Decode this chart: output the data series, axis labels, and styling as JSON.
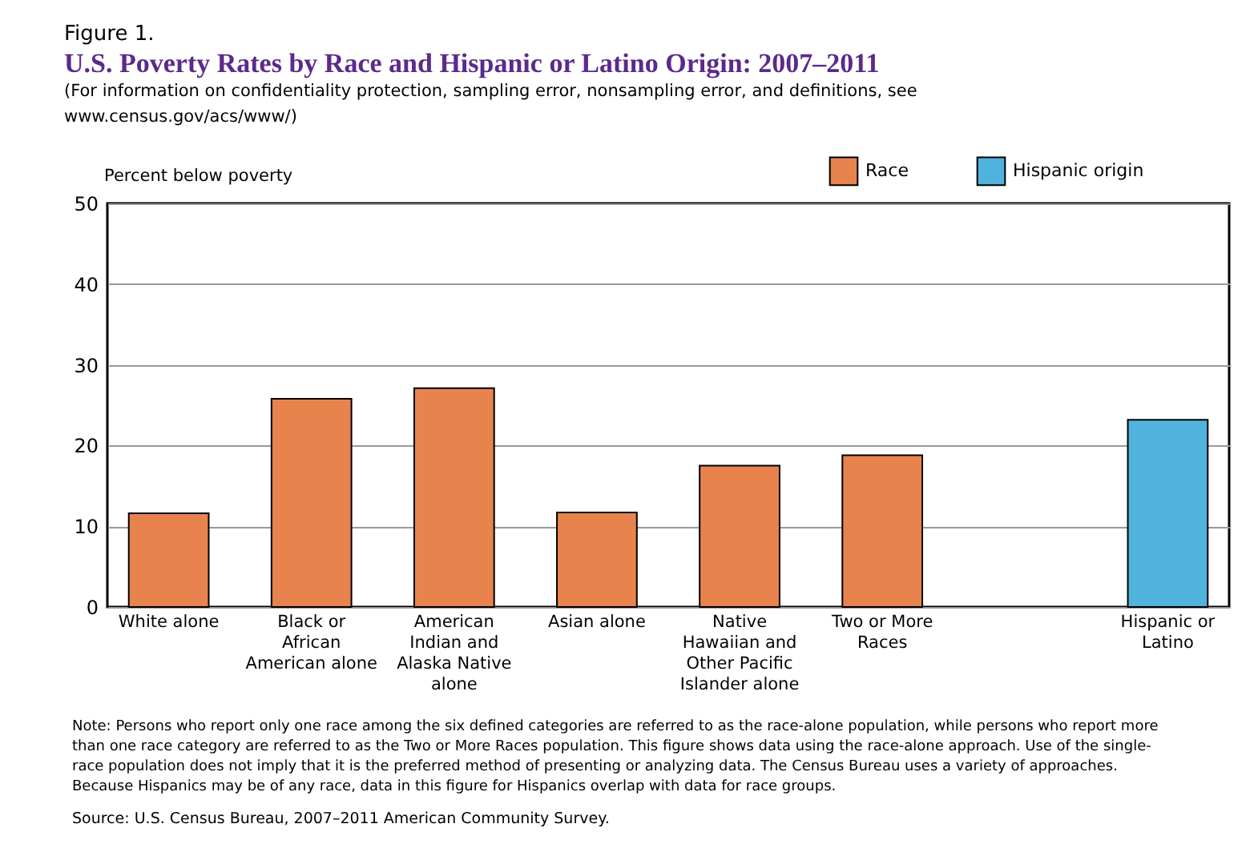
{
  "chart_data": {
    "type": "bar",
    "title": "U.S. Poverty Rates by Race and Hispanic or Latino Origin: 2007–2011",
    "subtitle": "(For information on confidentiality protection, sampling error, nonsampling error, and definitions, see www.census.gov/acs/www/)",
    "ylabel": "Percent below poverty",
    "categories": [
      "White alone",
      "Black or African American alone",
      "American Indian and Alaska Native alone",
      "Asian alone",
      "Native Hawaiian and Other Pacific Islander alone",
      "Two or More Races",
      null,
      "Hispanic or Latino"
    ],
    "series": [
      {
        "name": "Race",
        "color": "#e8834e",
        "values": [
          11.6,
          25.8,
          27.1,
          11.7,
          17.5,
          18.8,
          null,
          null
        ]
      },
      {
        "name": "Hispanic origin",
        "color": "#4fb3de",
        "values": [
          null,
          null,
          null,
          null,
          null,
          null,
          null,
          23.2
        ]
      }
    ],
    "ylim": [
      0,
      50
    ],
    "yticks": [
      0,
      10,
      20,
      30,
      40,
      50
    ],
    "grid": "y",
    "legend": "top right",
    "annotations": [
      "Figure 1.",
      "Note: Persons who report only one race among the six defined categories are referred to as the race-alone population, while persons who report more than one race category are referred to as the Two or More Races population. This figure shows data using the race-alone approach. Use of the single-race population does not imply that it is the preferred method of presenting or analyzing data. The Census Bureau uses a variety of approaches. Because Hispanics may be of any race, data in this figure for Hispanics overlap with data for race groups.",
      "Source: U.S. Census Bureau, 2007–2011 American Community Survey."
    ]
  }
}
